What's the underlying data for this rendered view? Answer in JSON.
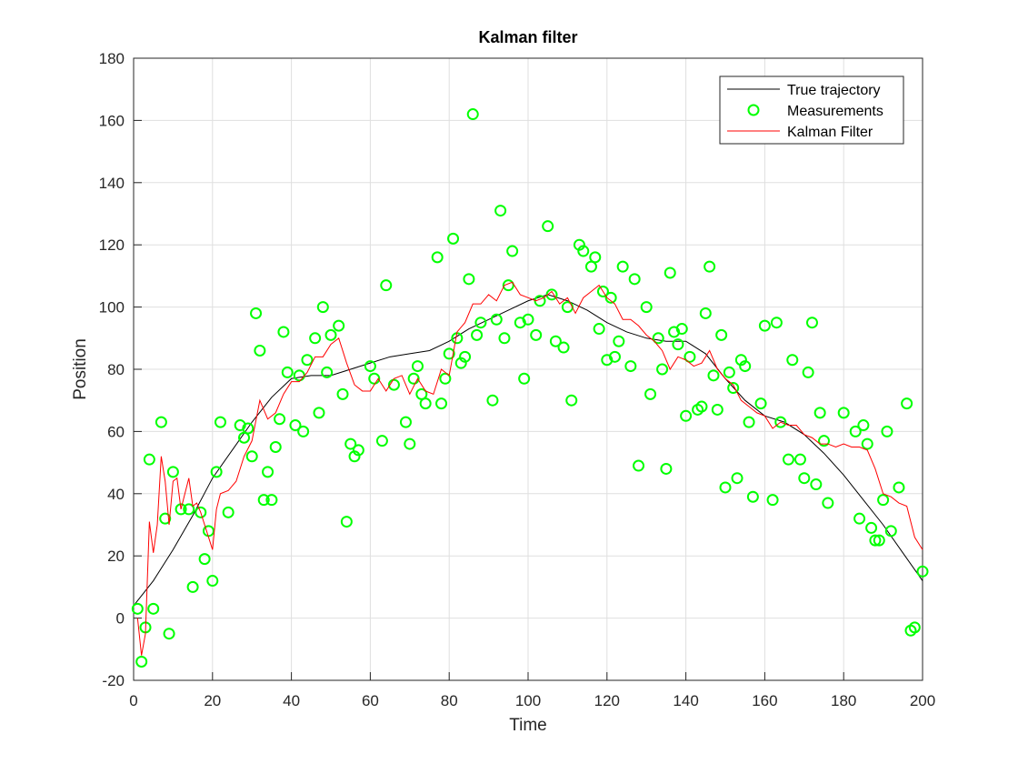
{
  "chart_data": {
    "type": "line",
    "title": "Kalman filter",
    "xlabel": "Time",
    "ylabel": "Position",
    "xlim": [
      0,
      200
    ],
    "xticks": [
      0,
      20,
      40,
      60,
      80,
      100,
      120,
      140,
      160,
      180,
      200
    ],
    "ylim": [
      -20,
      180
    ],
    "yticks": [
      -20,
      0,
      20,
      40,
      60,
      80,
      100,
      120,
      140,
      160,
      180
    ],
    "grid": true,
    "legend_position": "upper-right",
    "series": [
      {
        "name": "True trajectory",
        "color": "#000000",
        "mode": "line",
        "x": [
          0,
          5,
          10,
          15,
          20,
          25,
          30,
          35,
          40,
          45,
          50,
          55,
          60,
          65,
          70,
          75,
          80,
          85,
          90,
          95,
          100,
          105,
          110,
          115,
          120,
          125,
          130,
          135,
          140,
          145,
          150,
          155,
          160,
          165,
          170,
          175,
          180,
          185,
          190,
          195,
          200
        ],
        "values": [
          4,
          12,
          22,
          33,
          45,
          54,
          63,
          71,
          77,
          78,
          78,
          80,
          82,
          84,
          85,
          86,
          89,
          93,
          96,
          99,
          102,
          104,
          102,
          99,
          95,
          92,
          90,
          89,
          89,
          85,
          77,
          70,
          65,
          63,
          59,
          53,
          46,
          38,
          30,
          21,
          12
        ]
      },
      {
        "name": "Measurements",
        "color": "#00ff00",
        "mode": "markers",
        "x": [
          1,
          2,
          3,
          4,
          5,
          7,
          8,
          9,
          10,
          12,
          14,
          15,
          17,
          18,
          19,
          20,
          21,
          22,
          24,
          27,
          28,
          29,
          30,
          31,
          32,
          33,
          34,
          35,
          36,
          37,
          38,
          39,
          41,
          42,
          43,
          44,
          46,
          47,
          48,
          49,
          50,
          52,
          53,
          54,
          55,
          56,
          57,
          60,
          61,
          63,
          64,
          66,
          69,
          70,
          71,
          72,
          73,
          74,
          77,
          78,
          79,
          80,
          81,
          82,
          83,
          84,
          85,
          86,
          87,
          88,
          91,
          92,
          93,
          94,
          95,
          96,
          98,
          99,
          100,
          102,
          103,
          105,
          106,
          107,
          109,
          110,
          111,
          113,
          114,
          116,
          117,
          118,
          119,
          120,
          121,
          122,
          123,
          124,
          126,
          127,
          128,
          130,
          131,
          133,
          134,
          135,
          136,
          137,
          138,
          139,
          140,
          141,
          143,
          144,
          145,
          146,
          147,
          148,
          149,
          150,
          151,
          152,
          153,
          154,
          155,
          156,
          157,
          159,
          160,
          162,
          163,
          164,
          166,
          167,
          169,
          170,
          171,
          172,
          173,
          174,
          175,
          176,
          180,
          183,
          184,
          185,
          186,
          187,
          188,
          189,
          190,
          191,
          192,
          194,
          196,
          197,
          198,
          200
        ],
        "values": [
          3,
          -14,
          -3,
          51,
          3,
          63,
          32,
          -5,
          47,
          35,
          35,
          10,
          34,
          19,
          28,
          12,
          47,
          63,
          34,
          62,
          58,
          61,
          52,
          98,
          86,
          38,
          47,
          38,
          55,
          64,
          92,
          79,
          62,
          78,
          60,
          83,
          90,
          66,
          100,
          79,
          91,
          94,
          72,
          31,
          56,
          52,
          54,
          81,
          77,
          57,
          107,
          75,
          63,
          56,
          77,
          81,
          72,
          69,
          116,
          69,
          77,
          85,
          122,
          90,
          82,
          84,
          109,
          162,
          91,
          95,
          70,
          96,
          131,
          90,
          107,
          118,
          95,
          77,
          96,
          91,
          102,
          126,
          104,
          89,
          87,
          100,
          70,
          120,
          118,
          113,
          116,
          93,
          105,
          83,
          103,
          84,
          89,
          113,
          81,
          109,
          49,
          100,
          72,
          90,
          80,
          48,
          111,
          92,
          88,
          93,
          65,
          84,
          67,
          68,
          98,
          113,
          78,
          67,
          91,
          42,
          79,
          74,
          45,
          83,
          81,
          63,
          39,
          69,
          94,
          38,
          95,
          63,
          51,
          83,
          51,
          45,
          79,
          95,
          43,
          66,
          57,
          37,
          66,
          60,
          32,
          62,
          56,
          29,
          25,
          25,
          38,
          60,
          28,
          42,
          69,
          -4,
          -3,
          15
        ]
      },
      {
        "name": "Kalman Filter",
        "color": "#ff0000",
        "mode": "line",
        "x": [
          1,
          2,
          3,
          4,
          5,
          6,
          7,
          8,
          9,
          10,
          11,
          12,
          13,
          14,
          15,
          16,
          17,
          18,
          19,
          20,
          21,
          22,
          24,
          26,
          28,
          30,
          32,
          34,
          36,
          38,
          40,
          42,
          44,
          46,
          48,
          50,
          52,
          54,
          56,
          58,
          60,
          62,
          64,
          66,
          68,
          70,
          72,
          74,
          76,
          78,
          80,
          82,
          84,
          86,
          88,
          90,
          92,
          94,
          96,
          98,
          100,
          102,
          104,
          106,
          108,
          110,
          112,
          114,
          116,
          118,
          120,
          122,
          124,
          126,
          128,
          130,
          132,
          134,
          136,
          138,
          140,
          142,
          144,
          146,
          148,
          150,
          152,
          154,
          156,
          158,
          160,
          162,
          164,
          166,
          168,
          170,
          172,
          174,
          176,
          178,
          180,
          182,
          184,
          186,
          188,
          190,
          192,
          194,
          196,
          198,
          200
        ],
        "values": [
          0,
          -12,
          -5,
          31,
          21,
          30,
          52,
          44,
          30,
          44,
          45,
          35,
          40,
          45,
          36,
          37,
          34,
          30,
          26,
          22,
          35,
          40,
          41,
          44,
          52,
          57,
          70,
          64,
          66,
          72,
          76,
          76,
          79,
          84,
          84,
          88,
          90,
          82,
          75,
          73,
          73,
          77,
          73,
          77,
          78,
          72,
          77,
          73,
          72,
          80,
          78,
          92,
          95,
          101,
          101,
          104,
          102,
          107,
          108,
          104,
          103,
          102,
          103,
          105,
          101,
          103,
          98,
          103,
          105,
          107,
          103,
          101,
          96,
          96,
          94,
          91,
          89,
          86,
          80,
          84,
          83,
          81,
          82,
          86,
          80,
          77,
          75,
          70,
          68,
          66,
          65,
          61,
          63,
          62,
          62,
          59,
          58,
          56,
          56,
          55,
          56,
          55,
          55,
          54,
          48,
          40,
          39,
          37,
          36,
          26,
          22
        ]
      }
    ]
  }
}
